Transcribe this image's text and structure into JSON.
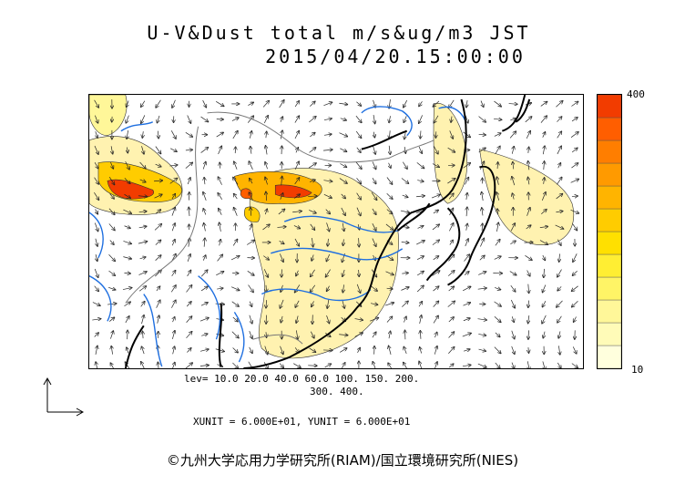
{
  "title_line1": "U-V&Dust total m/s&ug/m3 JST",
  "title_line2": "2015/04/20.15:00:00",
  "legend": {
    "max_label": "400",
    "min_label": "10",
    "colors": [
      "#ffffdd",
      "#fffbb8",
      "#fff799",
      "#fff466",
      "#ffee33",
      "#ffe000",
      "#ffcc00",
      "#ffb400",
      "#ff9a00",
      "#ff7e00",
      "#ff5e00",
      "#f23c00"
    ]
  },
  "levels_line1": "lev= 10.0 20.0 40.0 60.0 100. 150. 200.",
  "levels_line2": "300. 400.",
  "units_line": "XUNIT = 6.000E+01, YUNIT = 6.000E+01",
  "credit": "©九州大学応用力学研究所(RIAM)/国立環境研究所(NIES)",
  "colors": {
    "coast": "#000000",
    "river": "#1f6fe0",
    "border": "#777777",
    "dust_low": "#fff2b0",
    "dust_high": "#e83c00"
  }
}
